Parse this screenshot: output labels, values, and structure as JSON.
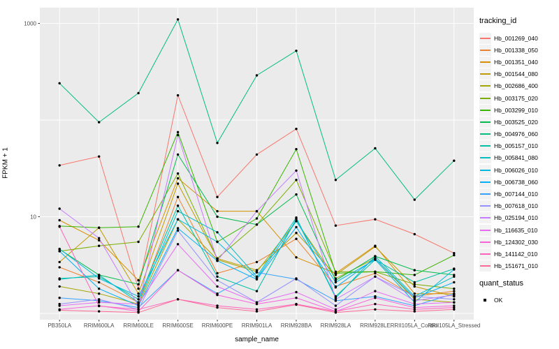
{
  "figure": {
    "background": "#FFFFFF",
    "panel_bg": "#EBEBEB",
    "grid_color": "#FFFFFF",
    "tick_color": "#333333",
    "tick_text_color": "#4D4D4D",
    "point_color": "#000000"
  },
  "chart_data": {
    "type": "line",
    "title": "",
    "xlabel": "sample_name",
    "ylabel": "FPKM + 1",
    "y_scale": "log10",
    "grid": true,
    "legend_position": "right",
    "y_tick_labels": [
      "1000",
      "10"
    ],
    "y_tick_values": [
      1000,
      10
    ],
    "y_gridline_values": [
      1000,
      100,
      10,
      1
    ],
    "ylim": [
      0.86,
      1450
    ],
    "categories": [
      "PB350LA",
      "RRIM600LA",
      "RRIM600LE",
      "RRIM600SE",
      "RRIM600PE",
      "RRIM901LA",
      "RRIM928BA",
      "RRIM928LA",
      "RRIM928LE",
      "RRII105LA_Control",
      "RRII105LA_Stressed"
    ],
    "series": [
      {
        "name": "Hb_001269_040",
        "color": "#F8766D",
        "values": [
          34,
          42,
          1.8,
          180,
          16,
          44,
          81,
          8.1,
          9.4,
          6.6,
          4.2
        ]
      },
      {
        "name": "Hb_001338_050",
        "color": "#EA8331",
        "values": [
          3.0,
          2.1,
          1.3,
          16,
          2.6,
          3.4,
          5.9,
          1.9,
          2.6,
          1.5,
          1.7
        ]
      },
      {
        "name": "Hb_001351_040",
        "color": "#D89000",
        "values": [
          9.2,
          5.7,
          2.2,
          25,
          11.4,
          11.4,
          3.8,
          2.6,
          5.0,
          1.6,
          1.6
        ]
      },
      {
        "name": "Hb_001544_080",
        "color": "#C09B00",
        "values": [
          3.4,
          7.7,
          1.6,
          22,
          3.7,
          2.8,
          6.8,
          2.5,
          4.9,
          1.9,
          1.5
        ]
      },
      {
        "name": "Hb_002686_400",
        "color": "#A3A500",
        "values": [
          1.9,
          1.6,
          1.25,
          9.4,
          3.6,
          2.7,
          9.0,
          2.3,
          3.7,
          1.4,
          1.3
        ]
      },
      {
        "name": "Hb_003175_020",
        "color": "#7CAE00",
        "values": [
          4.4,
          5.0,
          5.5,
          28,
          3.7,
          8.3,
          24,
          2.7,
          2.7,
          2.0,
          1.8
        ]
      },
      {
        "name": "Hb_003299_010",
        "color": "#39B600",
        "values": [
          8.0,
          7.7,
          7.9,
          75,
          5.5,
          9.6,
          50,
          2.6,
          2.7,
          2.5,
          4.0
        ]
      },
      {
        "name": "Hb_003525_020",
        "color": "#00BB4E",
        "values": [
          4.6,
          2.5,
          2.0,
          44,
          10,
          8.3,
          17,
          2.2,
          3.9,
          2.8,
          2.5
        ]
      },
      {
        "name": "Hb_004976_060",
        "color": "#00BF7D",
        "values": [
          240,
          95,
          190,
          1100,
          58,
          290,
          520,
          24,
          51,
          15,
          38
        ]
      },
      {
        "name": "Hb_005157_010",
        "color": "#00C1A3",
        "values": [
          2.3,
          2.4,
          1.4,
          13,
          2.4,
          1.7,
          9.5,
          1.5,
          3.6,
          2.1,
          2.9
        ]
      },
      {
        "name": "Hb_005841_080",
        "color": "#00BFC4",
        "values": [
          2.25,
          2.5,
          1.3,
          11.4,
          6.9,
          2.4,
          9.8,
          1.45,
          3.9,
          1.5,
          2.4
        ]
      },
      {
        "name": "Hb_006026_010",
        "color": "#00BAE0",
        "values": [
          4.65,
          2.3,
          1.5,
          9.4,
          5.5,
          2.3,
          9.0,
          2.1,
          3.6,
          1.3,
          2.85
        ]
      },
      {
        "name": "Hb_006738_060",
        "color": "#00B0F6",
        "values": [
          4.4,
          1.8,
          1.2,
          7.6,
          3.5,
          2.25,
          7.8,
          1.86,
          3.7,
          1.45,
          2.1
        ]
      },
      {
        "name": "Hb_007144_010",
        "color": "#35A2FF",
        "values": [
          1.45,
          1.35,
          1.15,
          2.8,
          1.6,
          2.66,
          2.26,
          1.35,
          1.5,
          1.2,
          1.6
        ]
      },
      {
        "name": "Hb_007618_010",
        "color": "#9590FF",
        "values": [
          1.25,
          1.4,
          1.1,
          7.2,
          2.2,
          1.3,
          2.3,
          1.2,
          2.4,
          1.5,
          1.4
        ]
      },
      {
        "name": "Hb_025194_010",
        "color": "#C77CFF",
        "values": [
          12.1,
          6.0,
          1.2,
          70,
          3.5,
          11.4,
          30,
          1.4,
          2.4,
          1.35,
          1.55
        ]
      },
      {
        "name": "Hb_116635_010",
        "color": "#E76BF3",
        "values": [
          1.2,
          1.3,
          1.25,
          5.2,
          1.9,
          1.3,
          1.66,
          1.1,
          1.7,
          1.25,
          1.3
        ]
      },
      {
        "name": "Hb_124302_030",
        "color": "#FA62DB",
        "values": [
          1.1,
          1.2,
          1.05,
          2.8,
          1.55,
          1.25,
          1.45,
          1.05,
          1.45,
          1.15,
          1.2
        ]
      },
      {
        "name": "Hb_141142_010",
        "color": "#FF62BC",
        "values": [
          7.9,
          1.19,
          1.1,
          1.4,
          1.2,
          1.1,
          1.25,
          1.05,
          1.25,
          1.1,
          1.15
        ]
      },
      {
        "name": "Hb_151671_010",
        "color": "#FF6A98",
        "values": [
          1.08,
          1.05,
          1.02,
          1.4,
          1.15,
          1.05,
          1.23,
          1.02,
          1.1,
          1.05,
          1.1
        ]
      }
    ]
  },
  "legend": {
    "title": "tracking_id",
    "quant_title": "quant_status",
    "quant_items": [
      {
        "label": "OK",
        "marker": "black-square-point"
      }
    ]
  }
}
